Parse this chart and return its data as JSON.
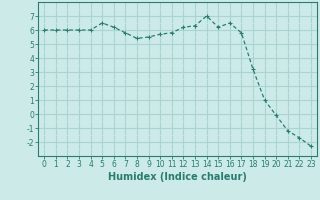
{
  "x": [
    0,
    1,
    2,
    3,
    4,
    5,
    6,
    7,
    8,
    9,
    10,
    11,
    12,
    13,
    14,
    15,
    16,
    17,
    18,
    19,
    20,
    21,
    22,
    23
  ],
  "y": [
    6.0,
    6.0,
    6.0,
    6.0,
    6.0,
    6.5,
    6.2,
    5.8,
    5.4,
    5.5,
    5.7,
    5.8,
    6.2,
    6.3,
    7.0,
    6.2,
    6.5,
    5.8,
    3.2,
    1.0,
    -0.1,
    -1.2,
    -1.7,
    -2.3
  ],
  "line_color": "#2a7d6e",
  "marker": "+",
  "marker_size": 3,
  "linewidth": 0.9,
  "bg_color": "#cceae7",
  "grid_major_color": "#aad4cf",
  "grid_minor_color": "#cceae7",
  "xlabel": "Humidex (Indice chaleur)",
  "xlim": [
    -0.5,
    23.5
  ],
  "ylim": [
    -3,
    8
  ],
  "yticks": [
    -2,
    -1,
    0,
    1,
    2,
    3,
    4,
    5,
    6,
    7
  ],
  "xticks": [
    0,
    1,
    2,
    3,
    4,
    5,
    6,
    7,
    8,
    9,
    10,
    11,
    12,
    13,
    14,
    15,
    16,
    17,
    18,
    19,
    20,
    21,
    22,
    23
  ],
  "xtick_labels": [
    "0",
    "1",
    "2",
    "3",
    "4",
    "5",
    "6",
    "7",
    "8",
    "9",
    "10",
    "11",
    "12",
    "13",
    "14",
    "15",
    "16",
    "17",
    "18",
    "19",
    "20",
    "21",
    "22",
    "23"
  ],
  "tick_fontsize": 5.5,
  "xlabel_fontsize": 7,
  "tick_color": "#2a7d6e",
  "axis_color": "#2a7d6e"
}
